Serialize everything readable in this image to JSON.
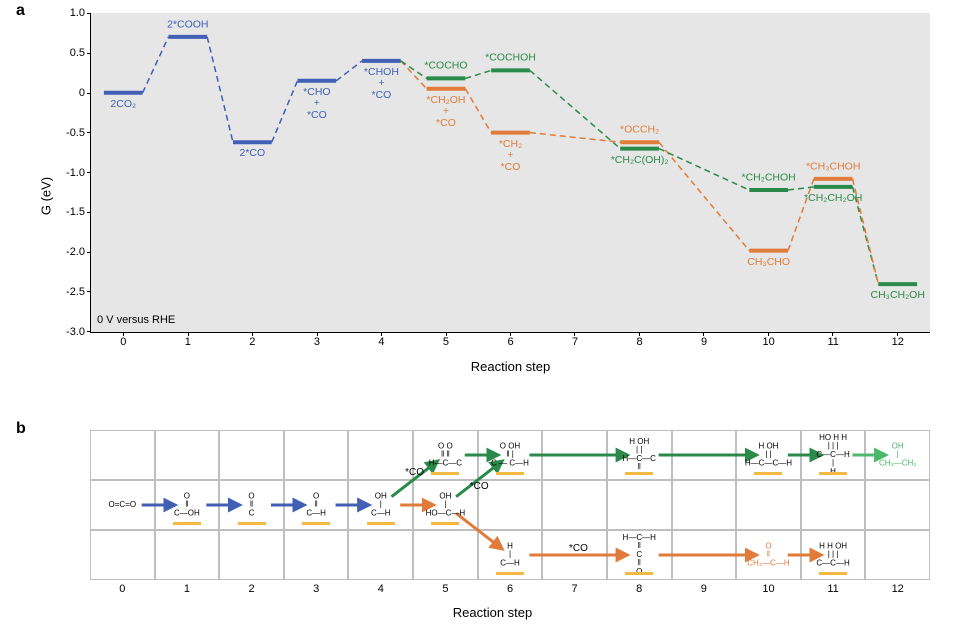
{
  "colors": {
    "blue": "#415fb5",
    "orange": "#e07b3a",
    "green": "#2a8a4a",
    "green_light": "#4cb86a",
    "stripe": "#e6e6e6",
    "grid_border": "#bfbfbf",
    "surf": "#f4b942",
    "black": "#000000"
  },
  "panel_a": {
    "label": "a",
    "ylabel": "G (eV)",
    "xlabel": "Reaction step",
    "condition": "0 V versus RHE",
    "xlim": [
      -0.5,
      12.5
    ],
    "ylim": [
      -3.0,
      1.0
    ],
    "yticks": [
      -3.0,
      -2.5,
      -2.0,
      -1.5,
      -1.0,
      -0.5,
      0,
      0.5,
      1.0
    ],
    "ytick_labels": [
      "-3.0",
      "-2.5",
      "-2.0",
      "-1.5",
      "-1.0",
      "-0.5",
      "0",
      "0.5",
      "1.0"
    ],
    "xticks": [
      0,
      1,
      2,
      3,
      4,
      5,
      6,
      7,
      8,
      9,
      10,
      11,
      12
    ],
    "stripe_width": 0.5,
    "line_width": 2.5,
    "dash": "6,4",
    "level_halfwidth": 0.3,
    "series": {
      "blue": {
        "steps": [
          {
            "x": 0,
            "g": 0.0,
            "label": "2CO₂",
            "lpos": "below"
          },
          {
            "x": 1,
            "g": 0.7,
            "label": "2*COOH",
            "lpos": "above"
          },
          {
            "x": 2,
            "g": -0.62,
            "label": "2*CO",
            "lpos": "below"
          },
          {
            "x": 3,
            "g": 0.15,
            "label": "*CHO\n+\n*CO",
            "lpos": "below"
          },
          {
            "x": 4,
            "g": 0.4,
            "label": "*CHOH\n+\n*CO",
            "lpos": "below"
          }
        ]
      },
      "orange": {
        "steps": [
          {
            "x": 5,
            "g": 0.05,
            "label": "*CH₂OH\n+\n*CO",
            "lpos": "below"
          },
          {
            "x": 6,
            "g": -0.5,
            "label": "*CH₂\n+\n*CO",
            "lpos": "below"
          },
          {
            "x": 8,
            "g": -0.62,
            "label": "*OCCH₂",
            "lpos": "above"
          },
          {
            "x": 10,
            "g": -1.98,
            "label": "CH₃CHO",
            "lpos": "below"
          },
          {
            "x": 11,
            "g": -1.08,
            "label": "*CH₃CHOH",
            "lpos": "above"
          }
        ]
      },
      "green": {
        "steps": [
          {
            "x": 5,
            "g": 0.18,
            "label": "*COCHO",
            "lpos": "above"
          },
          {
            "x": 6,
            "g": 0.28,
            "label": "*COCHOH",
            "lpos": "above"
          },
          {
            "x": 8,
            "g": -0.7,
            "label": "*CH₂C(OH)₂",
            "lpos": "below"
          },
          {
            "x": 10,
            "g": -1.22,
            "label": "*CH₂CHOH",
            "lpos": "above"
          },
          {
            "x": 11,
            "g": -1.18,
            "label": "*CH₂CH₂OH",
            "lpos": "below"
          },
          {
            "x": 12,
            "g": -2.4,
            "label": "CH₃CH₂OH",
            "lpos": "below"
          }
        ]
      }
    },
    "connectors": [
      {
        "from": [
          "blue",
          4
        ],
        "to": [
          "orange",
          5
        ]
      },
      {
        "from": [
          "blue",
          4
        ],
        "to": [
          "green",
          5
        ]
      },
      {
        "from": [
          "orange",
          11
        ],
        "to": [
          "green",
          12
        ]
      }
    ]
  },
  "panel_b": {
    "label": "b",
    "xlabel": "Reaction step",
    "rows": 3,
    "cols": 13,
    "xticks": [
      0,
      1,
      2,
      3,
      4,
      5,
      6,
      7,
      8,
      9,
      10,
      11,
      12
    ],
    "arrows": [
      {
        "from": [
          1,
          0
        ],
        "to": [
          1,
          1
        ],
        "color": "blue"
      },
      {
        "from": [
          1,
          1
        ],
        "to": [
          1,
          2
        ],
        "color": "blue"
      },
      {
        "from": [
          1,
          2
        ],
        "to": [
          1,
          3
        ],
        "color": "blue"
      },
      {
        "from": [
          1,
          3
        ],
        "to": [
          1,
          4
        ],
        "color": "blue"
      },
      {
        "from": [
          1,
          4
        ],
        "to": [
          1,
          5
        ],
        "color": "orange"
      },
      {
        "from": [
          1,
          4
        ],
        "to": [
          0,
          5
        ],
        "color": "green",
        "diag": true,
        "note": "*CO",
        "note_pos": "above"
      },
      {
        "from": [
          1,
          5
        ],
        "to": [
          0,
          6
        ],
        "color": "green",
        "diag": true,
        "note": "*CO",
        "note_pos": "below"
      },
      {
        "from": [
          0,
          5
        ],
        "to": [
          0,
          6
        ],
        "color": "green"
      },
      {
        "from": [
          0,
          6
        ],
        "to": [
          0,
          8
        ],
        "color": "green"
      },
      {
        "from": [
          0,
          8
        ],
        "to": [
          0,
          10
        ],
        "color": "green"
      },
      {
        "from": [
          0,
          10
        ],
        "to": [
          0,
          11
        ],
        "color": "green"
      },
      {
        "from": [
          0,
          11
        ],
        "to": [
          0,
          12
        ],
        "color": "green_light"
      },
      {
        "from": [
          1,
          5
        ],
        "to": [
          2,
          6
        ],
        "color": "orange",
        "diag": true
      },
      {
        "from": [
          2,
          6
        ],
        "to": [
          2,
          8
        ],
        "color": "orange",
        "note": "*CO",
        "note_pos": "above"
      },
      {
        "from": [
          2,
          8
        ],
        "to": [
          2,
          10
        ],
        "color": "orange"
      },
      {
        "from": [
          2,
          10
        ],
        "to": [
          2,
          11
        ],
        "color": "orange"
      }
    ],
    "molecules": [
      {
        "row": 1,
        "col": 0,
        "lines": [
          "O=C=O"
        ],
        "surf": false
      },
      {
        "row": 1,
        "col": 1,
        "lines": [
          "O",
          "‖",
          "C—OH"
        ],
        "surf": true
      },
      {
        "row": 1,
        "col": 2,
        "lines": [
          "O",
          "‖",
          "C"
        ],
        "surf": true
      },
      {
        "row": 1,
        "col": 3,
        "lines": [
          "O",
          "‖",
          "C—H"
        ],
        "surf": true
      },
      {
        "row": 1,
        "col": 4,
        "lines": [
          "OH",
          "|",
          "C—H"
        ],
        "surf": true
      },
      {
        "row": 1,
        "col": 5,
        "lines": [
          "OH",
          "|",
          "HO—C—H"
        ],
        "surf": true
      },
      {
        "row": 0,
        "col": 5,
        "lines": [
          "O   O",
          "‖   ‖",
          "H—C—C"
        ],
        "surf": true
      },
      {
        "row": 0,
        "col": 6,
        "lines": [
          "O   OH",
          "‖    |",
          "C — C—H"
        ],
        "surf": true
      },
      {
        "row": 0,
        "col": 8,
        "lines": [
          "H  OH",
          "|   |",
          "H—C—C",
          "      ‖"
        ],
        "surf": true
      },
      {
        "row": 0,
        "col": 10,
        "lines": [
          "H  OH",
          "|   |",
          "H—C—C—H"
        ],
        "surf": true
      },
      {
        "row": 0,
        "col": 11,
        "lines": [
          "HO  H  H",
          " |   |   |",
          "C—C—H",
          "      |",
          "      H"
        ],
        "surf": true
      },
      {
        "row": 0,
        "col": 12,
        "lines": [
          "OH",
          "|",
          "CH₃—CH₂"
        ],
        "surf": false,
        "color": "green_light"
      },
      {
        "row": 2,
        "col": 6,
        "lines": [
          "H",
          "|",
          "C—H"
        ],
        "surf": true
      },
      {
        "row": 2,
        "col": 8,
        "lines": [
          "H—C—H",
          "   ‖",
          "   C",
          "   ‖",
          "   O"
        ],
        "surf": true
      },
      {
        "row": 2,
        "col": 10,
        "lines": [
          "O",
          "‖",
          "CH₃—C—H"
        ],
        "surf": false,
        "color": "orange"
      },
      {
        "row": 2,
        "col": 11,
        "lines": [
          "H  H  OH",
          "|   |   |",
          "C—C—H"
        ],
        "surf": true
      }
    ]
  }
}
